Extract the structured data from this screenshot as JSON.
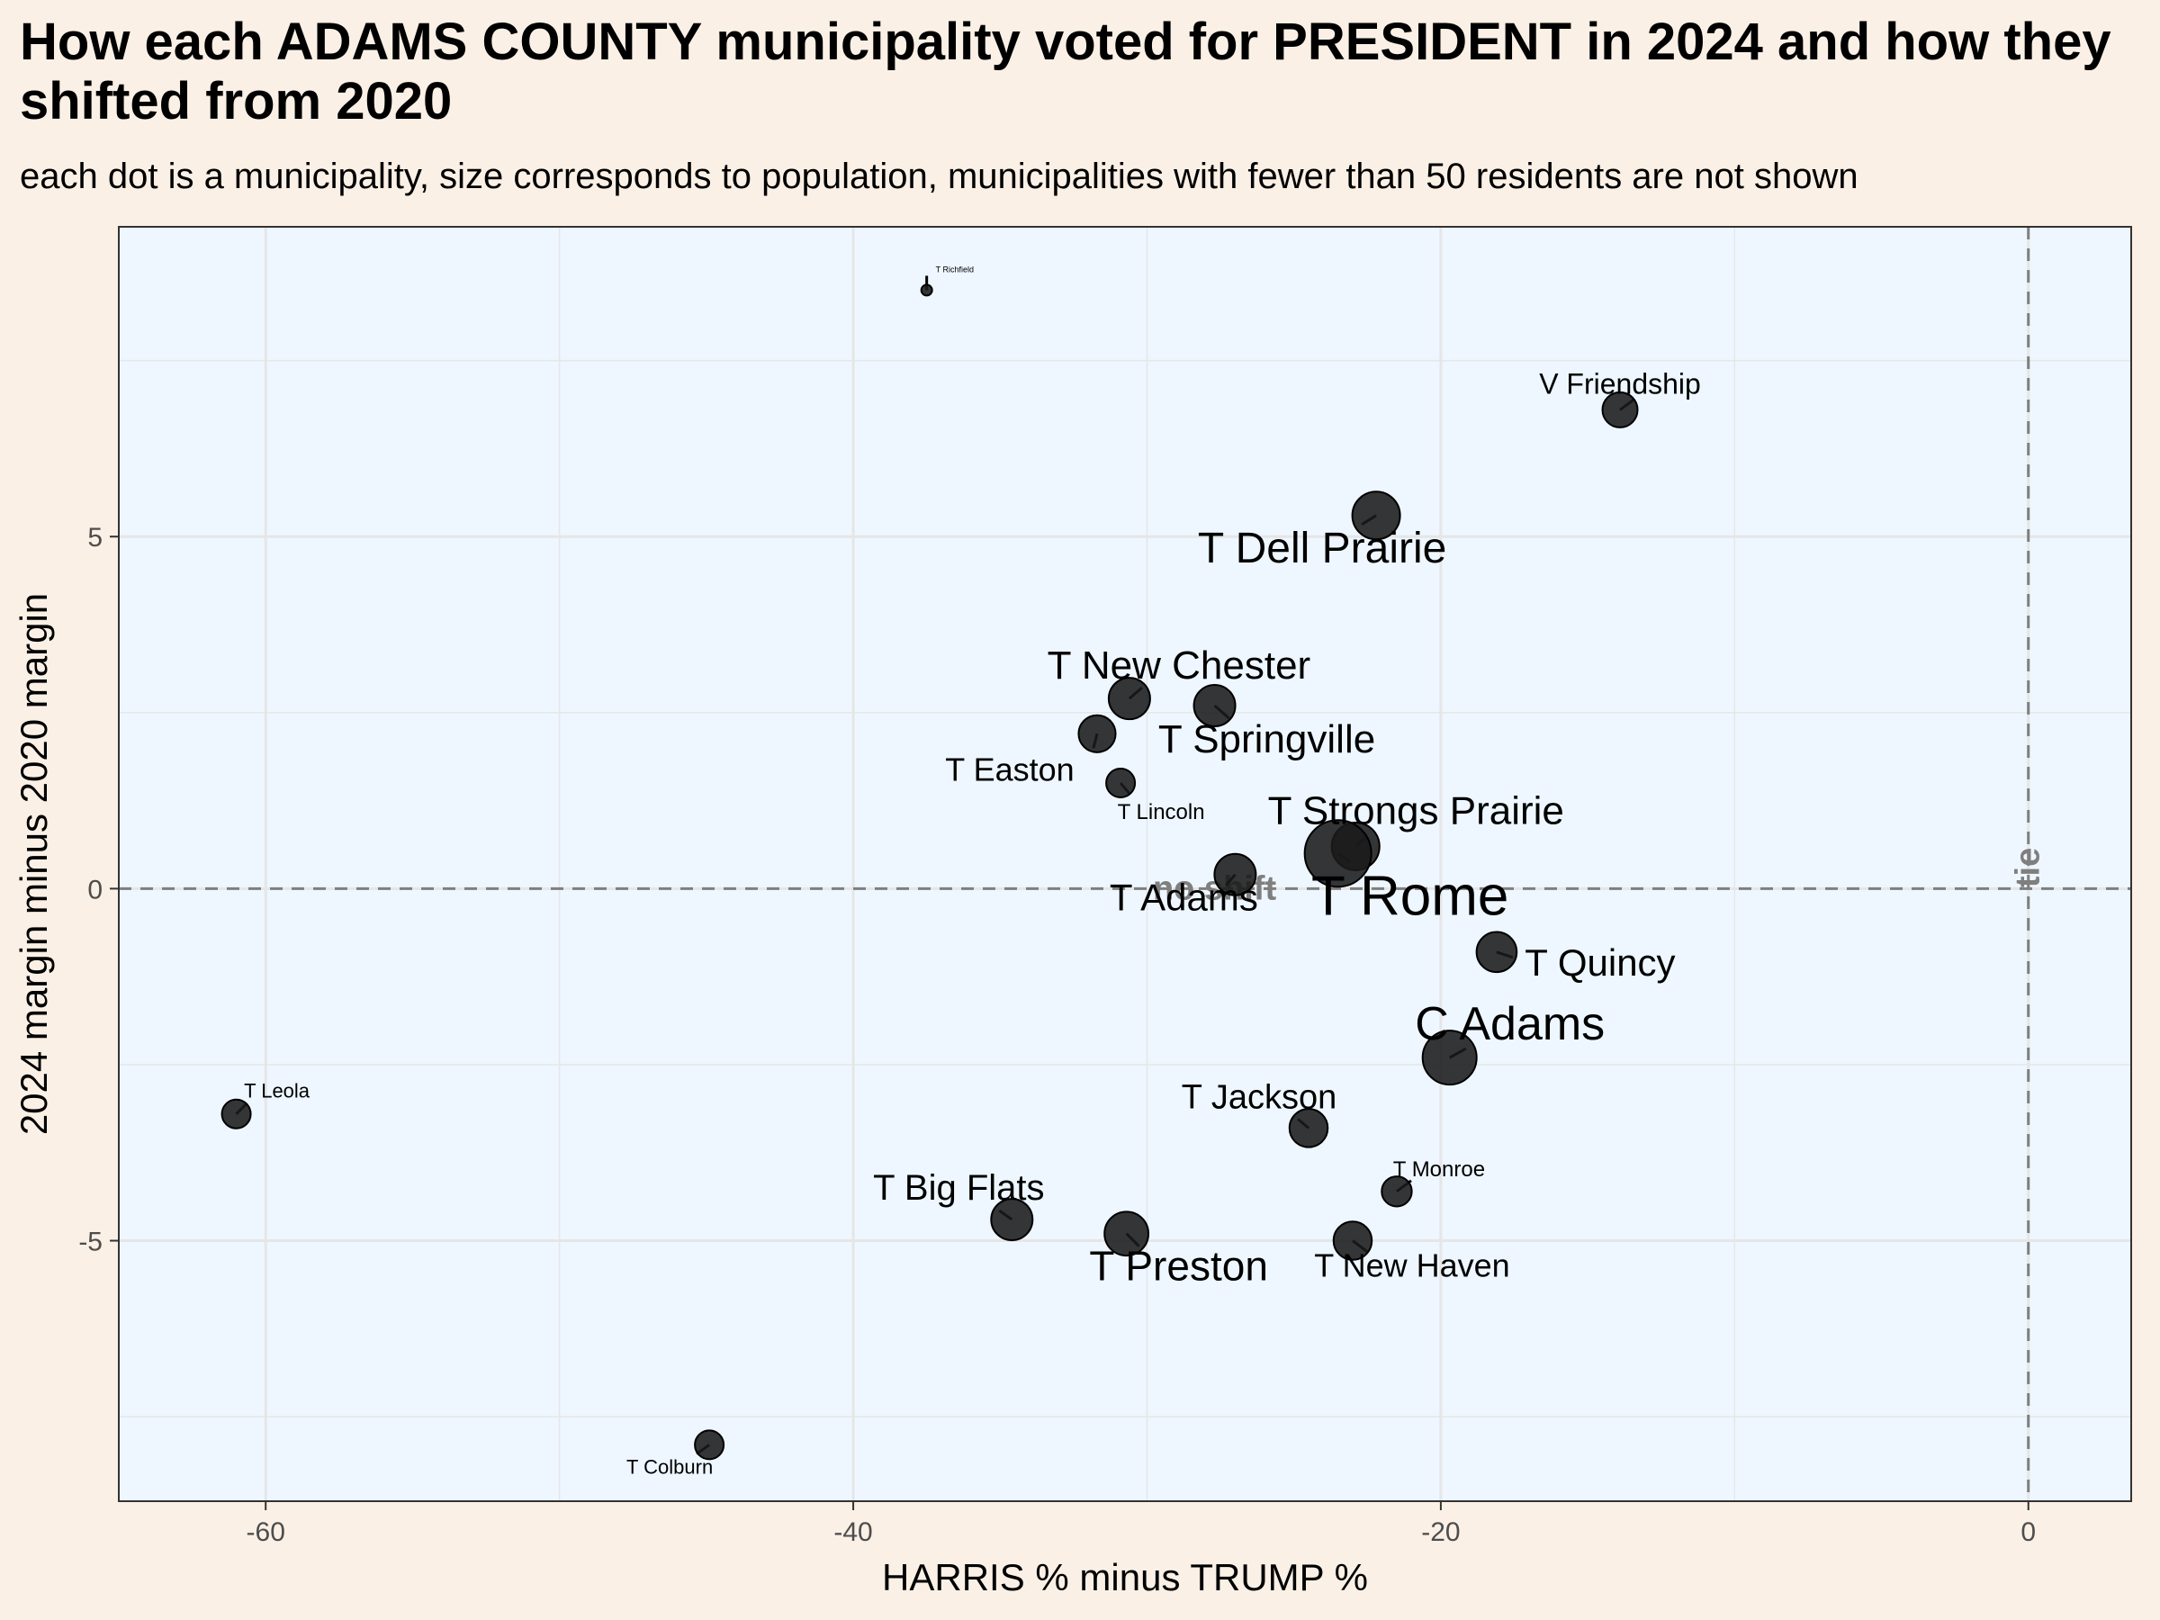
{
  "chart_data": {
    "type": "scatter",
    "title": "How each ADAMS COUNTY municipality voted for PRESIDENT in 2024 and how they shifted from 2020",
    "subtitle": "each dot is a municipality, size corresponds to population, municipalities with fewer than 50 residents are not shown",
    "xlabel": "HARRIS % minus TRUMP %",
    "ylabel": "2024 margin minus 2020 margin",
    "xlim": [
      -65,
      3.5
    ],
    "ylim": [
      -8.7,
      9.4
    ],
    "x_ticks": [
      -60,
      -40,
      -20,
      0
    ],
    "y_ticks": [
      -5,
      0,
      5
    ],
    "x_tick_labels": [
      "-60",
      "-40",
      "-20",
      "0"
    ],
    "y_tick_labels": [
      "-5",
      "0",
      "5"
    ],
    "grid": true,
    "colors": {
      "plot_bg": "#eef7ff",
      "page_bg": "#faf0e6",
      "point": "#1a1a1a",
      "grid": "#e6e6e6",
      "ref_line": "#7f7f7f"
    },
    "reference_lines": [
      {
        "axis": "y",
        "value": 0,
        "label": "no shift"
      },
      {
        "axis": "x",
        "value": 0,
        "label": "tie"
      }
    ],
    "points": [
      {
        "name": "T Richfield",
        "x": -37.5,
        "y": 8.5,
        "size": 1
      },
      {
        "name": "V Friendship",
        "x": -13.9,
        "y": 6.8,
        "size": 3
      },
      {
        "name": "T Dell Prairie",
        "x": -22.2,
        "y": 5.3,
        "size": 5
      },
      {
        "name": "T New Chester",
        "x": -30.6,
        "y": 2.7,
        "size": 4
      },
      {
        "name": "T Springville",
        "x": -27.7,
        "y": 2.6,
        "size": 4
      },
      {
        "name": "T Easton",
        "x": -31.7,
        "y": 2.2,
        "size": 3.3
      },
      {
        "name": "T Lincoln",
        "x": -30.9,
        "y": 1.5,
        "size": 2
      },
      {
        "name": "T Strongs Prairie",
        "x": -22.9,
        "y": 0.6,
        "size": 5
      },
      {
        "name": "T Rome",
        "x": -23.5,
        "y": 0.5,
        "size": 8
      },
      {
        "name": "T Adams",
        "x": -27.0,
        "y": 0.2,
        "size": 4
      },
      {
        "name": "T Quincy",
        "x": -18.1,
        "y": -0.9,
        "size": 3.8
      },
      {
        "name": "C Adams",
        "x": -19.7,
        "y": -2.4,
        "size": 6
      },
      {
        "name": "T Leola",
        "x": -61.0,
        "y": -3.2,
        "size": 2
      },
      {
        "name": "T Jackson",
        "x": -24.5,
        "y": -3.4,
        "size": 3.5
      },
      {
        "name": "T Monroe",
        "x": -21.5,
        "y": -4.3,
        "size": 2.2
      },
      {
        "name": "T Big Flats",
        "x": -34.6,
        "y": -4.7,
        "size": 4
      },
      {
        "name": "T Preston",
        "x": -30.7,
        "y": -4.9,
        "size": 4.4
      },
      {
        "name": "T New Haven",
        "x": -23.0,
        "y": -5.0,
        "size": 3.5
      },
      {
        "name": "T Colburn",
        "x": -44.9,
        "y": -7.9,
        "size": 2
      }
    ]
  }
}
